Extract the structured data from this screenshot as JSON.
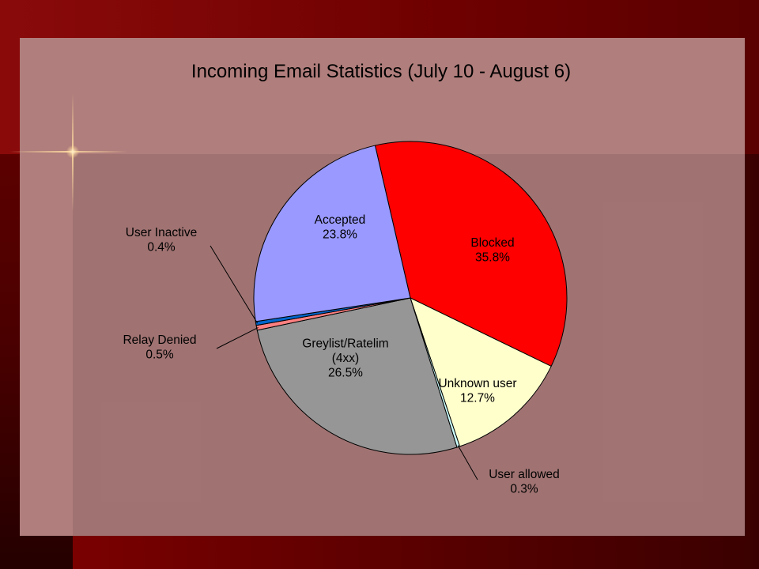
{
  "chart_data": {
    "type": "pie",
    "title": "Incoming Email Statistics (July 10 - August 6)",
    "slices": [
      {
        "label": "Blocked",
        "value": 35.8,
        "value_label": "35.8%",
        "color": "#ff0000",
        "label_lines": [
          "Blocked",
          "35.8%"
        ]
      },
      {
        "label": "Unknown user",
        "value": 12.7,
        "value_label": "12.7%",
        "color": "#ffffcc",
        "label_lines": [
          "Unknown user",
          "12.7%"
        ]
      },
      {
        "label": "User allowed",
        "value": 0.3,
        "value_label": "0.3%",
        "color": "#ccffff",
        "label_lines": [
          "User allowed",
          "0.3%"
        ]
      },
      {
        "label": "Greylist/Ratelim (4xx)",
        "value": 26.5,
        "value_label": "26.5%",
        "color": "#969696",
        "label_lines": [
          "Greylist/Ratelim",
          "(4xx)",
          "26.5%"
        ]
      },
      {
        "label": "Relay Denied",
        "value": 0.5,
        "value_label": "0.5%",
        "color": "#ff8080",
        "label_lines": [
          "Relay Denied",
          "0.5%"
        ]
      },
      {
        "label": "User Inactive",
        "value": 0.4,
        "value_label": "0.4%",
        "color": "#0066cc",
        "label_lines": [
          "User Inactive",
          "0.4%"
        ]
      },
      {
        "label": "Accepted",
        "value": 23.8,
        "value_label": "23.8%",
        "color": "#9999ff",
        "label_lines": [
          "Accepted",
          "23.8%"
        ]
      }
    ]
  }
}
